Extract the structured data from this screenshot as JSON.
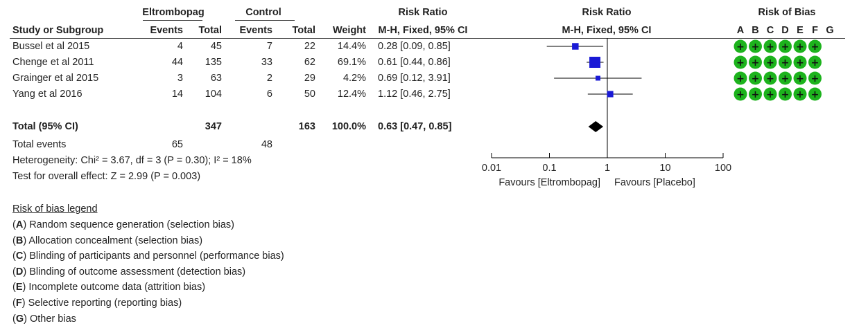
{
  "header": {
    "group1": "Eltrombopag",
    "group2": "Control",
    "rr_top": "Risk Ratio",
    "rr_plot_top": "Risk Ratio",
    "rob_top": "Risk of Bias",
    "study_col": "Study or Subgroup",
    "events1": "Events",
    "total1": "Total",
    "events2": "Events",
    "total2": "Total",
    "weight": "Weight",
    "rr_method": "M-H, Fixed, 95% CI",
    "rr_plot_method": "M-H, Fixed, 95% CI",
    "rob_letters": [
      "A",
      "B",
      "C",
      "D",
      "E",
      "F",
      "G"
    ]
  },
  "studies": [
    {
      "name": "Bussel et al 2015",
      "e1": "4",
      "t1": "45",
      "e2": "7",
      "t2": "22",
      "weight": "14.4%",
      "ci": "0.28 [0.09, 0.85]"
    },
    {
      "name": "Chenge et al 2011",
      "e1": "44",
      "t1": "135",
      "e2": "33",
      "t2": "62",
      "weight": "69.1%",
      "ci": "0.61 [0.44, 0.86]"
    },
    {
      "name": "Grainger et al 2015",
      "e1": "3",
      "t1": "63",
      "e2": "2",
      "t2": "29",
      "weight": "4.2%",
      "ci": "0.69 [0.12, 3.91]"
    },
    {
      "name": "Yang et al 2016",
      "e1": "14",
      "t1": "104",
      "e2": "6",
      "t2": "50",
      "weight": "12.4%",
      "ci": "1.12 [0.46, 2.75]"
    }
  ],
  "total": {
    "label": "Total (95% CI)",
    "t1": "347",
    "t2": "163",
    "weight": "100.0%",
    "ci": "0.63 [0.47, 0.85]"
  },
  "total_events": {
    "label": "Total events",
    "e1": "65",
    "e2": "48"
  },
  "heterogeneity": "Heterogeneity: Chi² = 3.67, df = 3 (P = 0.30); I² = 18%",
  "overall_effect": "Test for overall effect: Z = 2.99 (P = 0.003)",
  "rob_legend": {
    "title": "Risk of bias legend",
    "items": [
      {
        "key": "A",
        "text": "Random sequence generation (selection bias)"
      },
      {
        "key": "B",
        "text": "Allocation concealment (selection bias)"
      },
      {
        "key": "C",
        "text": "Blinding of participants and personnel (performance bias)"
      },
      {
        "key": "D",
        "text": "Blinding of outcome assessment (detection bias)"
      },
      {
        "key": "E",
        "text": "Incomplete outcome data (attrition bias)"
      },
      {
        "key": "F",
        "text": "Selective reporting (reporting bias)"
      },
      {
        "key": "G",
        "text": "Other bias"
      }
    ]
  },
  "rob_symbol": "+",
  "colors": {
    "square": "#1a1ad6",
    "rob_green": "#1db31d",
    "diamond": "#000000"
  },
  "chart_data": {
    "type": "forest",
    "scale": "log",
    "xlim": [
      0.01,
      100
    ],
    "ticks": [
      {
        "value": 0.01,
        "label": "0.01"
      },
      {
        "value": 0.1,
        "label": "0.1"
      },
      {
        "value": 1,
        "label": "1"
      },
      {
        "value": 10,
        "label": "10"
      },
      {
        "value": 100,
        "label": "100"
      }
    ],
    "favours_left": "Favours [Eltrombopag]",
    "favours_right": "Favours [Placebo]",
    "points": [
      {
        "name": "Bussel et al 2015",
        "rr": 0.28,
        "lo": 0.09,
        "hi": 0.85,
        "weight": 14.4
      },
      {
        "name": "Chenge et al 2011",
        "rr": 0.61,
        "lo": 0.44,
        "hi": 0.86,
        "weight": 69.1
      },
      {
        "name": "Grainger et al 2015",
        "rr": 0.69,
        "lo": 0.12,
        "hi": 3.91,
        "weight": 4.2
      },
      {
        "name": "Yang et al 2016",
        "rr": 1.12,
        "lo": 0.46,
        "hi": 2.75,
        "weight": 12.4
      }
    ],
    "pooled": {
      "rr": 0.63,
      "lo": 0.47,
      "hi": 0.85
    },
    "rob_domains_rated": [
      "A",
      "B",
      "C",
      "D",
      "E",
      "F"
    ],
    "rob_rating": "low risk"
  }
}
